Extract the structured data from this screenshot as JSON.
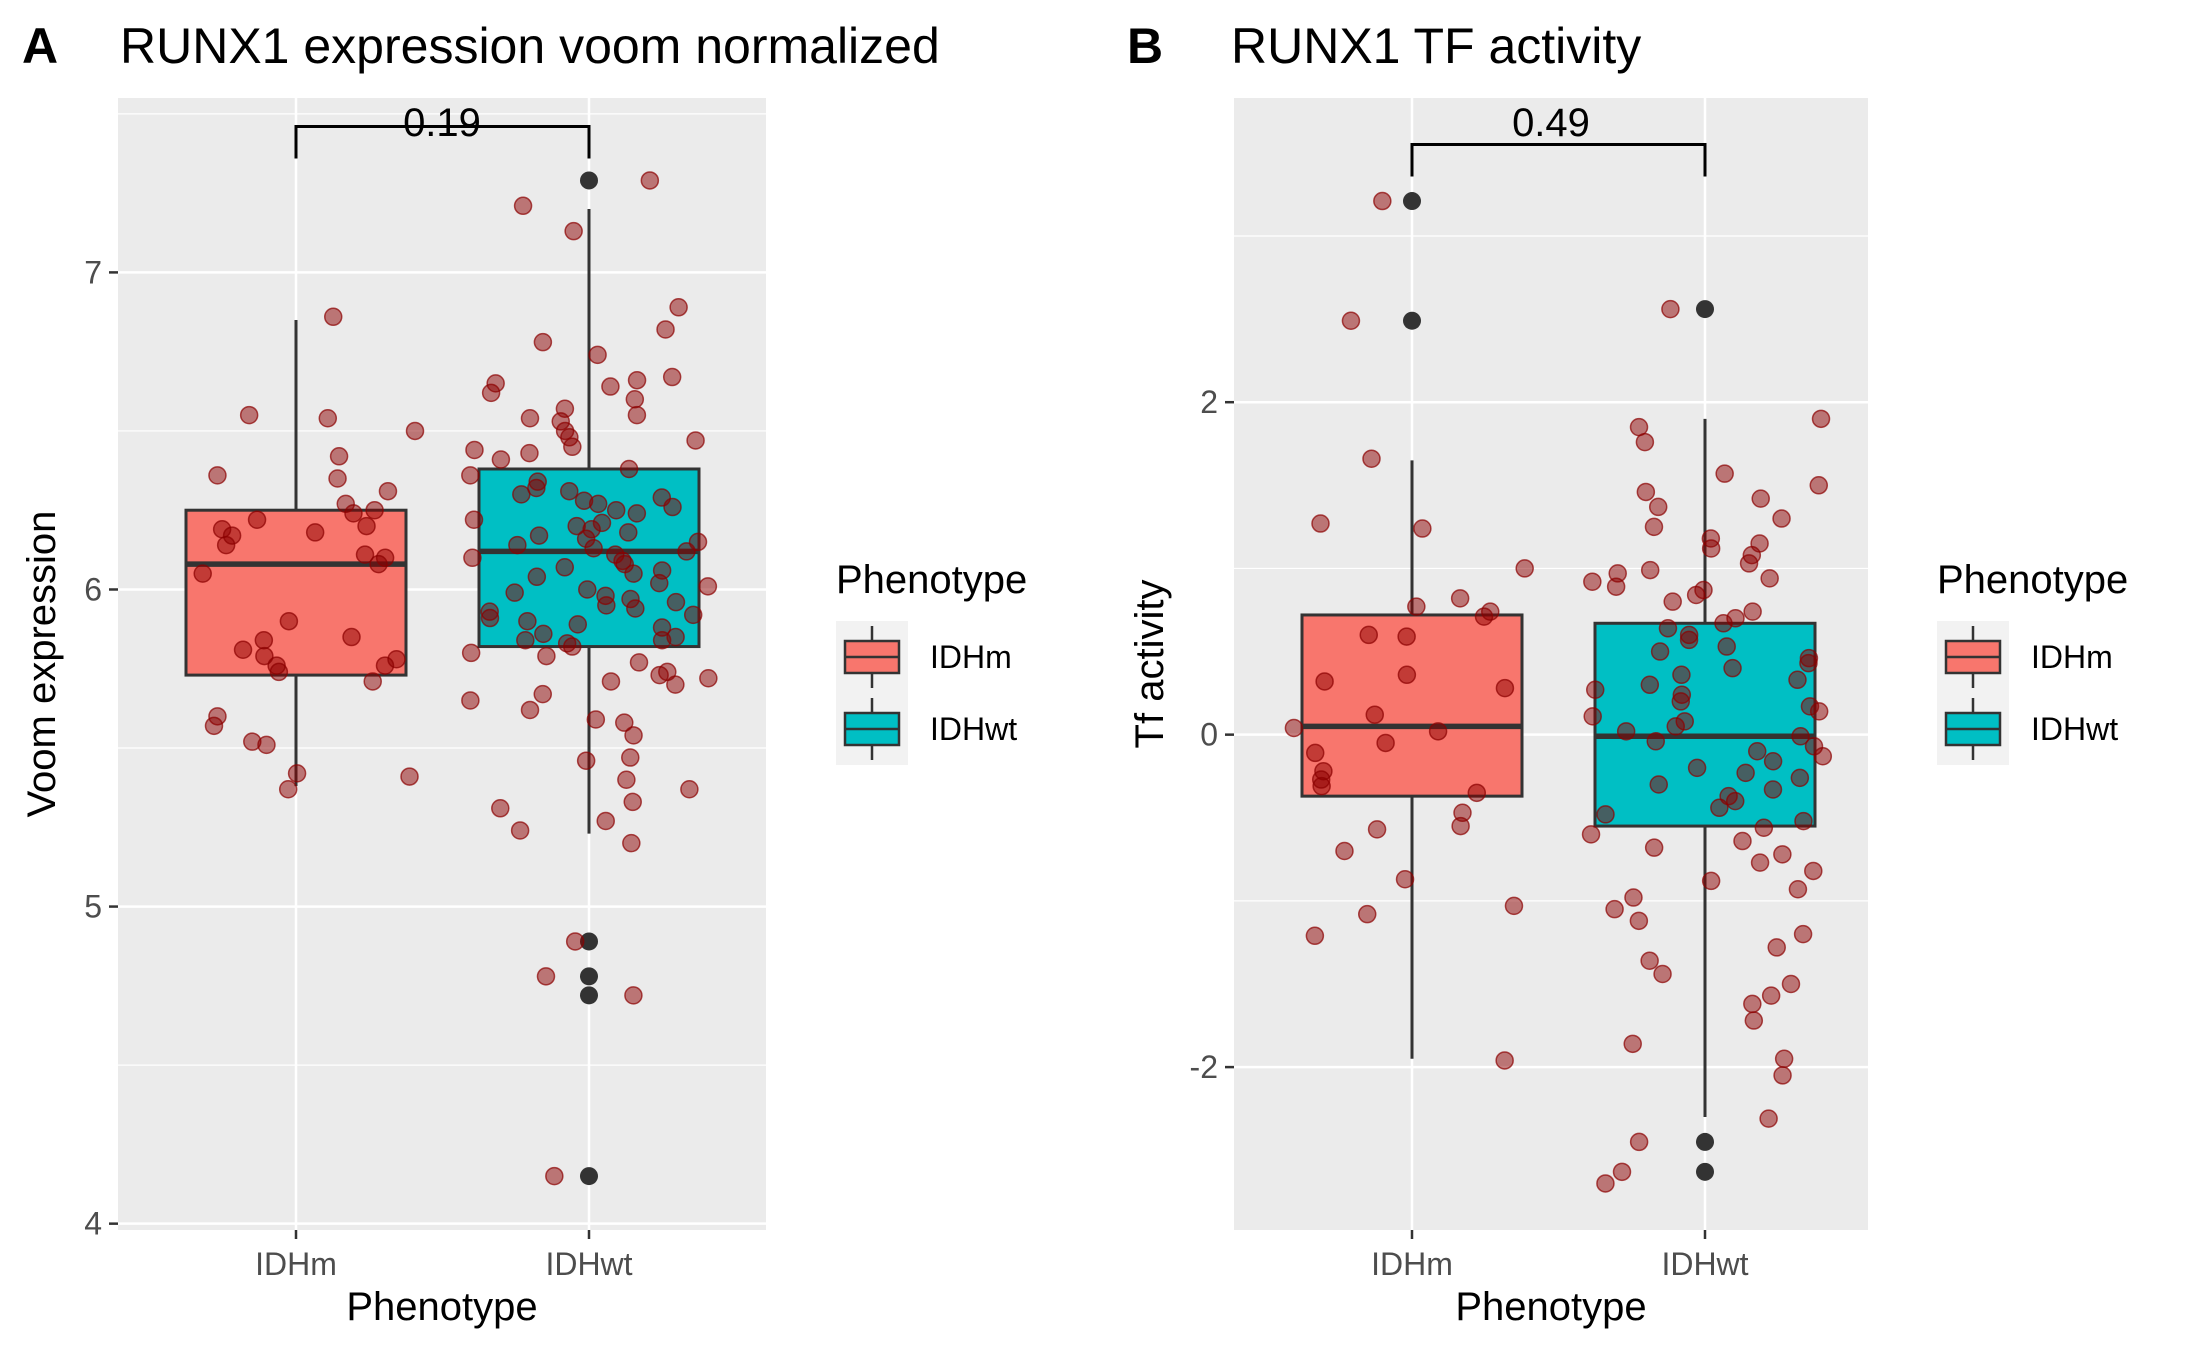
{
  "chart_data": [
    {
      "type": "box",
      "panel_label": "A",
      "title": "RUNX1 expression voom normalized",
      "xlabel": "Phenotype",
      "ylabel": "Voom expression",
      "categories": [
        "IDHm",
        "IDHwt"
      ],
      "yticks": [
        4,
        5,
        6,
        7
      ],
      "ylim": [
        3.98,
        7.55
      ],
      "grid": true,
      "comparison": {
        "from": "IDHm",
        "to": "IDHwt",
        "label": "0.19",
        "y": 7.46
      },
      "boxes": [
        {
          "name": "IDHm",
          "color": "#F8766D",
          "min": 5.38,
          "q1": 5.73,
          "median": 6.08,
          "q3": 6.25,
          "max": 6.85,
          "outliers": []
        },
        {
          "name": "IDHwt",
          "color": "#00BFC4",
          "min": 5.23,
          "q1": 5.82,
          "median": 6.12,
          "q3": 6.38,
          "max": 7.2,
          "outliers": [
            7.29,
            4.89,
            4.78,
            4.72,
            4.15
          ]
        }
      ],
      "jitter_points": {
        "color": "#8B0000",
        "IDHm": [
          6.86,
          6.55,
          6.54,
          6.5,
          6.42,
          6.35,
          6.36,
          6.31,
          6.27,
          6.25,
          6.24,
          6.22,
          6.2,
          6.19,
          6.18,
          6.17,
          6.14,
          6.11,
          6.1,
          6.08,
          6.05,
          5.9,
          5.85,
          5.84,
          5.81,
          5.79,
          5.78,
          5.76,
          5.76,
          5.74,
          5.71,
          5.6,
          5.57,
          5.52,
          5.51,
          5.42,
          5.41,
          5.37
        ],
        "IDHwt": [
          7.29,
          7.21,
          7.13,
          6.89,
          6.82,
          6.78,
          6.74,
          6.67,
          6.66,
          6.65,
          6.64,
          6.62,
          6.6,
          6.57,
          6.55,
          6.54,
          6.53,
          6.5,
          6.48,
          6.47,
          6.45,
          6.44,
          6.43,
          6.41,
          6.38,
          6.36,
          6.34,
          6.32,
          6.31,
          6.3,
          6.29,
          6.28,
          6.27,
          6.26,
          6.25,
          6.24,
          6.22,
          6.21,
          6.2,
          6.19,
          6.18,
          6.17,
          6.16,
          6.15,
          6.14,
          6.13,
          6.12,
          6.11,
          6.1,
          6.09,
          6.08,
          6.07,
          6.06,
          6.05,
          6.04,
          6.02,
          6.01,
          6.0,
          5.99,
          5.98,
          5.97,
          5.96,
          5.95,
          5.94,
          5.93,
          5.92,
          5.91,
          5.9,
          5.89,
          5.88,
          5.86,
          5.85,
          5.84,
          5.84,
          5.83,
          5.82,
          5.8,
          5.79,
          5.77,
          5.74,
          5.73,
          5.72,
          5.71,
          5.7,
          5.67,
          5.65,
          5.62,
          5.59,
          5.58,
          5.54,
          5.47,
          5.46,
          5.4,
          5.37,
          5.33,
          5.31,
          5.27,
          5.24,
          5.2,
          4.89,
          4.78,
          4.72,
          4.15
        ]
      }
    },
    {
      "type": "box",
      "panel_label": "B",
      "title": "RUNX1 TF activity",
      "xlabel": "Phenotype",
      "ylabel": "Tf activity",
      "categories": [
        "IDHm",
        "IDHwt"
      ],
      "yticks": [
        -2,
        0,
        2
      ],
      "ytick_labels": [
        "-2",
        "0",
        "2"
      ],
      "ylim": [
        -2.98,
        3.83
      ],
      "grid": true,
      "comparison": {
        "from": "IDHm",
        "to": "IDHwt",
        "label": "0.49",
        "y": 3.55
      },
      "boxes": [
        {
          "name": "IDHm",
          "color": "#F8766D",
          "min": -1.95,
          "q1": -0.37,
          "median": 0.05,
          "q3": 0.72,
          "max": 1.65,
          "outliers": [
            3.21,
            2.49
          ]
        },
        {
          "name": "IDHwt",
          "color": "#00BFC4",
          "min": -2.3,
          "q1": -0.55,
          "median": -0.01,
          "q3": 0.67,
          "max": 1.9,
          "outliers": [
            2.56,
            -2.45,
            -2.63
          ]
        }
      ],
      "jitter_points": {
        "color": "#8B0000",
        "IDHm": [
          3.21,
          2.49,
          1.66,
          1.27,
          1.24,
          1.0,
          0.82,
          0.77,
          0.74,
          0.71,
          0.6,
          0.59,
          0.36,
          0.32,
          0.28,
          0.12,
          0.04,
          0.02,
          -0.05,
          -0.11,
          -0.22,
          -0.27,
          -0.31,
          -0.35,
          -0.47,
          -0.55,
          -0.57,
          -0.7,
          -0.87,
          -1.03,
          -1.08,
          -1.21,
          -1.96
        ],
        "IDHwt": [
          2.56,
          1.9,
          1.85,
          1.76,
          1.57,
          1.5,
          1.46,
          1.42,
          1.37,
          1.3,
          1.25,
          1.18,
          1.15,
          1.12,
          1.08,
          1.03,
          0.99,
          0.97,
          0.94,
          0.92,
          0.89,
          0.87,
          0.84,
          0.8,
          0.74,
          0.7,
          0.67,
          0.64,
          0.6,
          0.57,
          0.53,
          0.5,
          0.46,
          0.43,
          0.4,
          0.36,
          0.33,
          0.3,
          0.27,
          0.24,
          0.2,
          0.17,
          0.14,
          0.11,
          0.08,
          0.05,
          0.02,
          -0.01,
          -0.04,
          -0.07,
          -0.1,
          -0.13,
          -0.16,
          -0.2,
          -0.23,
          -0.26,
          -0.3,
          -0.33,
          -0.37,
          -0.4,
          -0.44,
          -0.48,
          -0.52,
          -0.56,
          -0.6,
          -0.64,
          -0.68,
          -0.72,
          -0.77,
          -0.82,
          -0.88,
          -0.93,
          -0.98,
          -1.05,
          -1.12,
          -1.2,
          -1.28,
          -1.36,
          -1.44,
          -1.5,
          -1.57,
          -1.62,
          -1.72,
          -1.86,
          -1.95,
          -2.05,
          -2.31,
          -2.45,
          -2.63,
          -2.7
        ]
      }
    }
  ],
  "legend": {
    "title": "Phenotype",
    "entries": [
      {
        "label": "IDHm",
        "color": "#F8766D"
      },
      {
        "label": "IDHwt",
        "color": "#00BFC4"
      }
    ]
  }
}
